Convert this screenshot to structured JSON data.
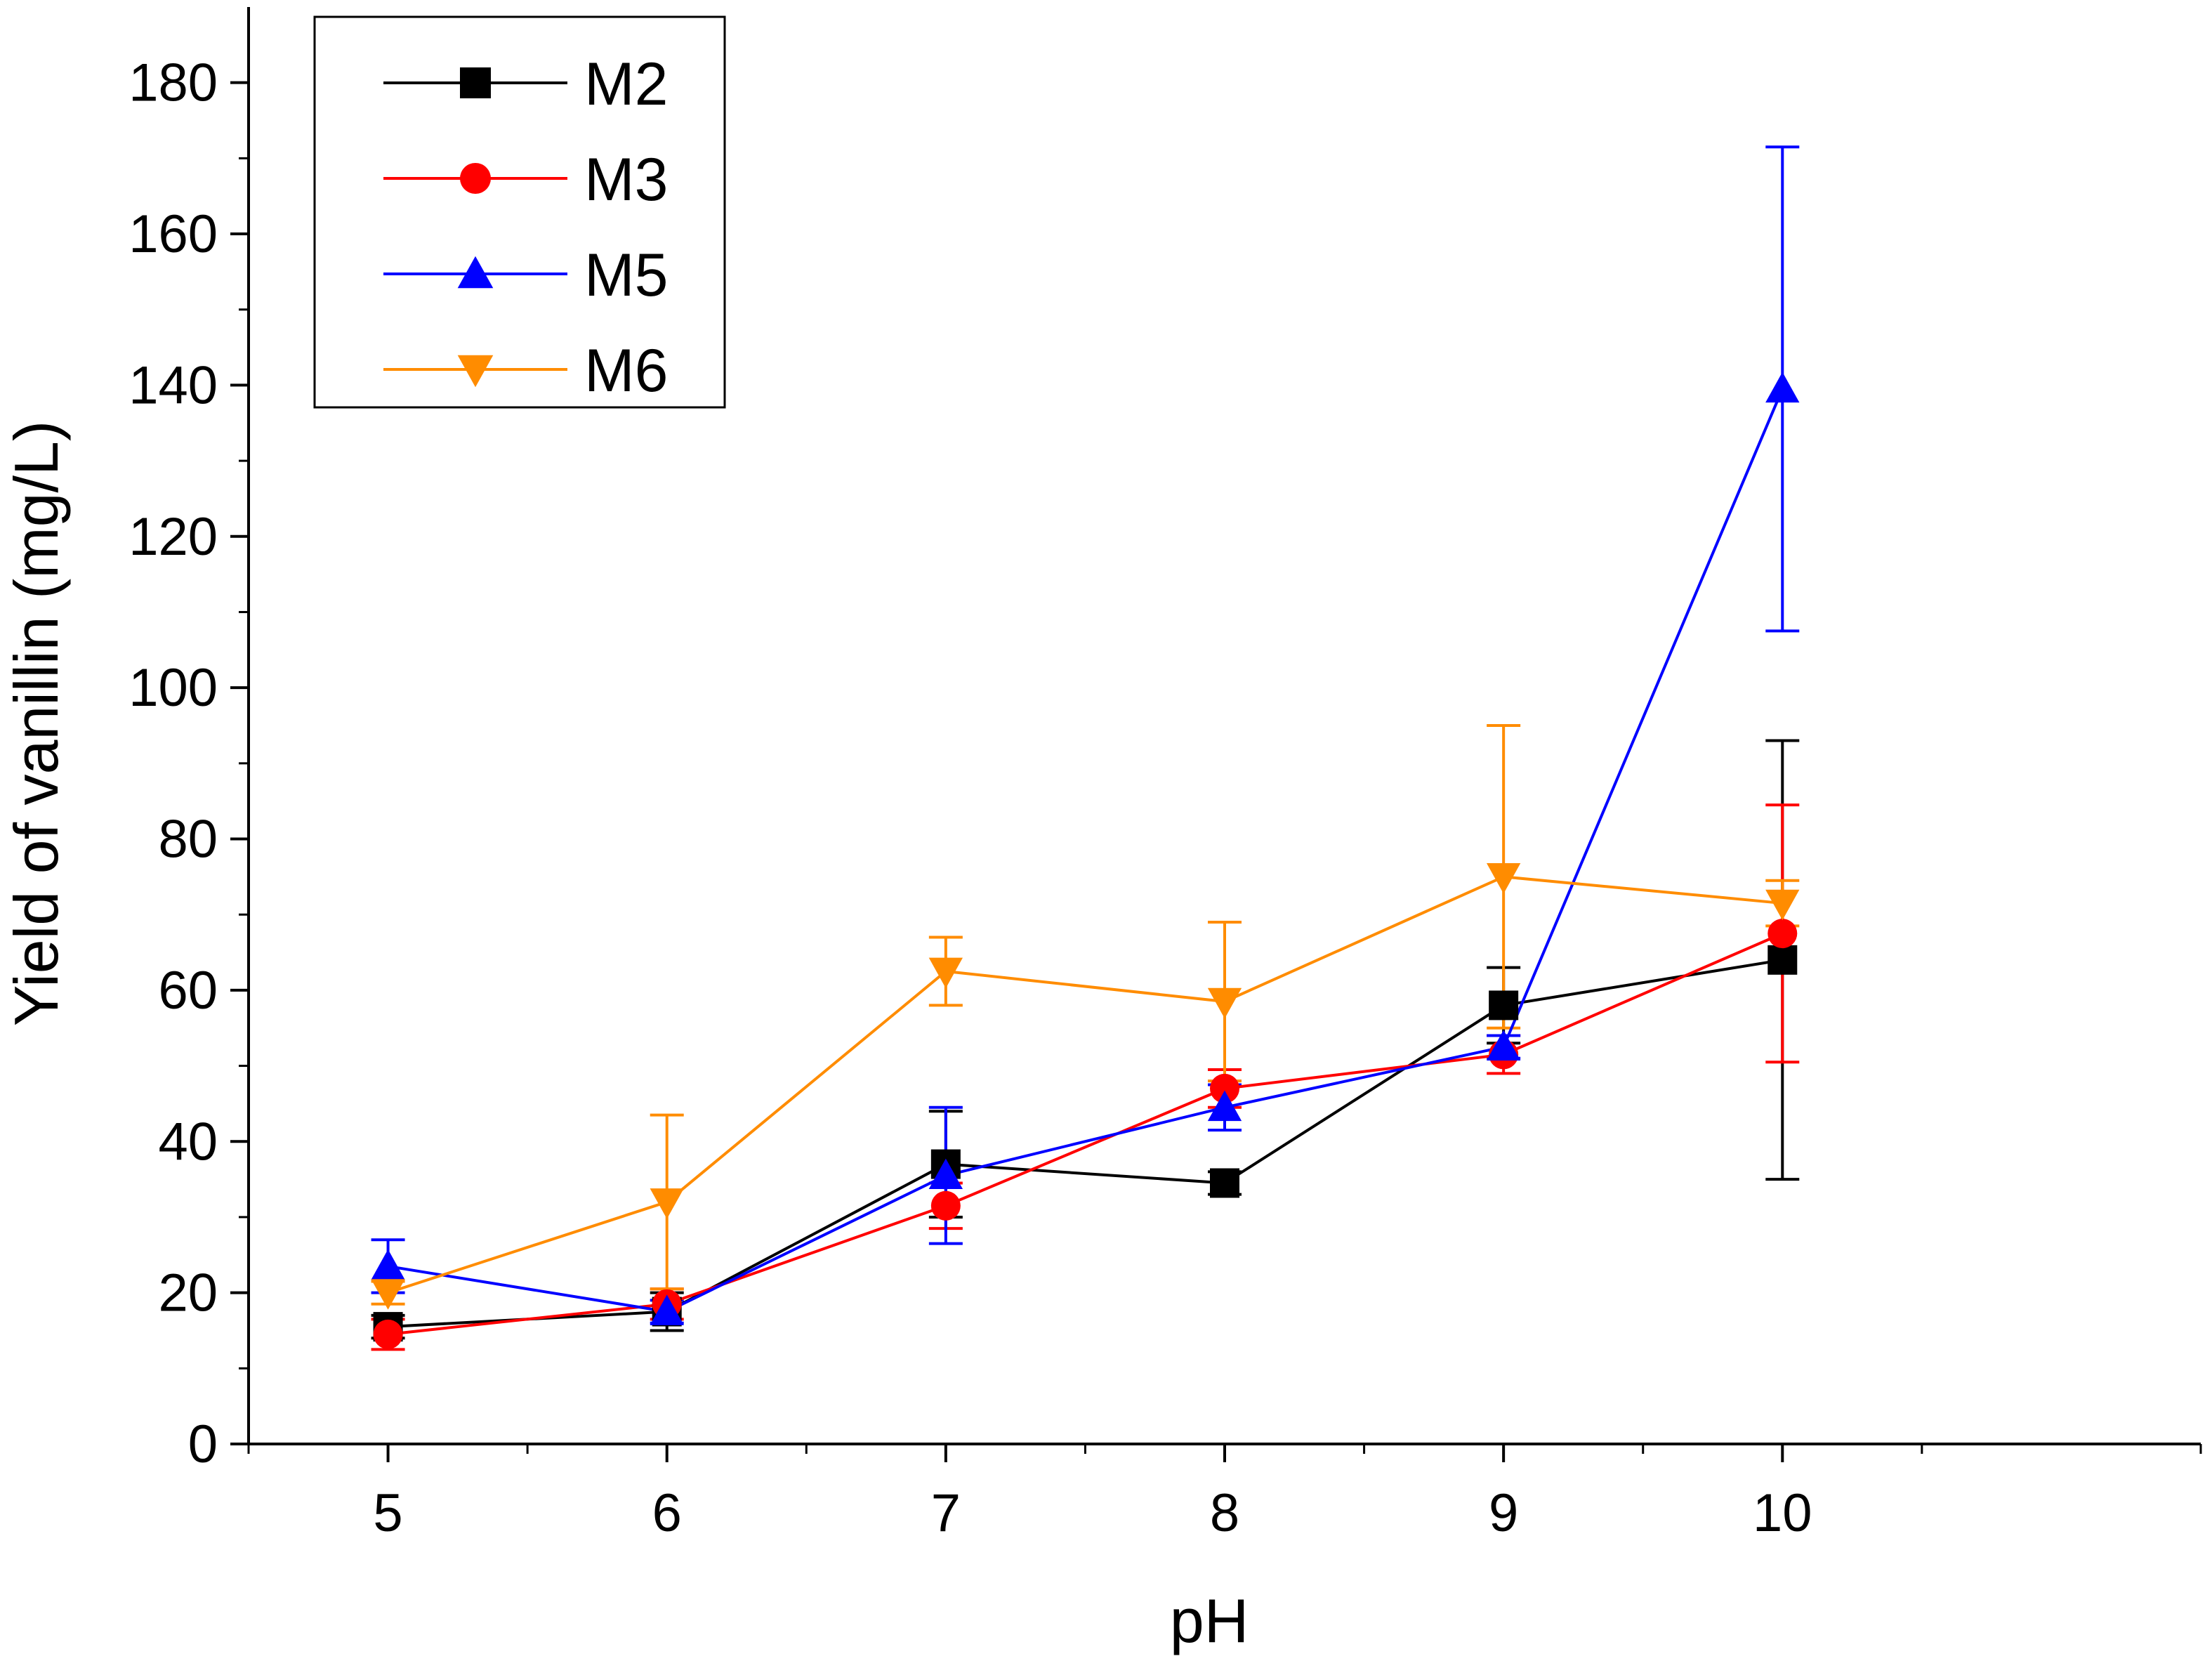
{
  "chart_data": {
    "type": "line",
    "title": "",
    "xlabel": "pH",
    "ylabel": "Yield of vanillin (mg/L)",
    "xlim": [
      4.5,
      11.5
    ],
    "ylim": [
      0,
      190
    ],
    "x_ticks": [
      5,
      6,
      7,
      8,
      9,
      10
    ],
    "x_minor_ticks": [
      4.5,
      5.5,
      6.5,
      7.5,
      8.5,
      9.5,
      10.5,
      11.5
    ],
    "y_ticks": [
      0,
      20,
      40,
      60,
      80,
      100,
      120,
      140,
      160,
      180
    ],
    "y_minor_step": 10,
    "grid": false,
    "legend_position": "top-left",
    "x": [
      5,
      6,
      7,
      8,
      9,
      10
    ],
    "series": [
      {
        "name": "M2",
        "color": "#000000",
        "marker": "square",
        "values": [
          15.5,
          17.5,
          37,
          34.5,
          58,
          64
        ],
        "error": [
          1.5,
          2.5,
          7,
          1.5,
          5,
          29
        ]
      },
      {
        "name": "M3",
        "color": "#ff0000",
        "marker": "circle",
        "values": [
          14.5,
          18.5,
          31.5,
          47,
          51.5,
          67.5
        ],
        "error": [
          2,
          2,
          3,
          2.5,
          2.5,
          17
        ]
      },
      {
        "name": "M5",
        "color": "#0000ff",
        "marker": "triangle-up",
        "values": [
          23.5,
          17.5,
          35.5,
          44.5,
          52.5,
          139.5
        ],
        "error": [
          3.5,
          1.5,
          9,
          3,
          1.5,
          32
        ]
      },
      {
        "name": "M6",
        "color": "#ff8c00",
        "marker": "triangle-down",
        "values": [
          20,
          32,
          62.5,
          58.5,
          75,
          71.5
        ],
        "error": [
          1.5,
          11.5,
          4.5,
          10.5,
          20,
          3
        ]
      }
    ]
  }
}
